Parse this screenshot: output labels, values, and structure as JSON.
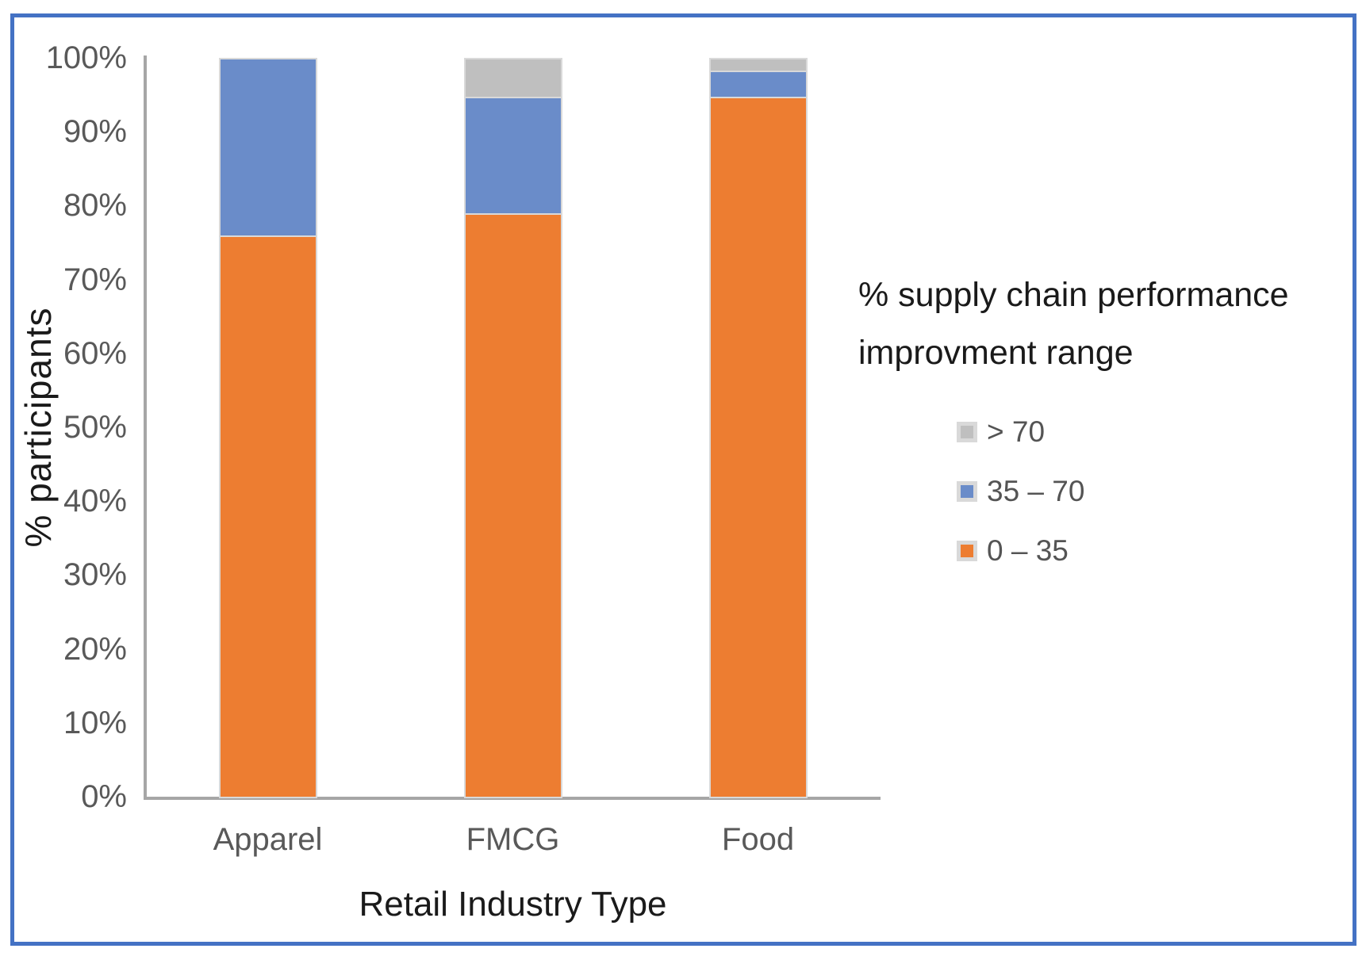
{
  "frame": {
    "border_color": "#4472C4"
  },
  "chart_data": {
    "type": "bar",
    "stacked": true,
    "title": "",
    "xlabel": "Retail Industry Type",
    "ylabel": "% participants",
    "categories": [
      "Apparel",
      "FMCG",
      "Food"
    ],
    "series": [
      {
        "name": "0 – 35",
        "color": "#ED7D31",
        "values": [
          76,
          79,
          94.7
        ]
      },
      {
        "name": "35 – 70",
        "color": "#6A8CC9",
        "values": [
          24,
          15.7,
          3.6
        ]
      },
      {
        "name": "> 70",
        "color": "#BFBFBF",
        "values": [
          0,
          5.3,
          1.7
        ]
      }
    ],
    "ylim": [
      0,
      100
    ],
    "ytick_step": 10,
    "ytick_suffix": "%",
    "grid": false,
    "axis_color": "#A6A6A6",
    "tick_label_color": "#595959",
    "legend": {
      "position": "right",
      "title_lines": [
        "% supply chain performance",
        "improvment range"
      ],
      "items": [
        {
          "label": "> 70",
          "color": "#BFBFBF"
        },
        {
          "label": "35 – 70",
          "color": "#6A8CC9"
        },
        {
          "label": "0 – 35",
          "color": "#ED7D31"
        }
      ]
    }
  }
}
